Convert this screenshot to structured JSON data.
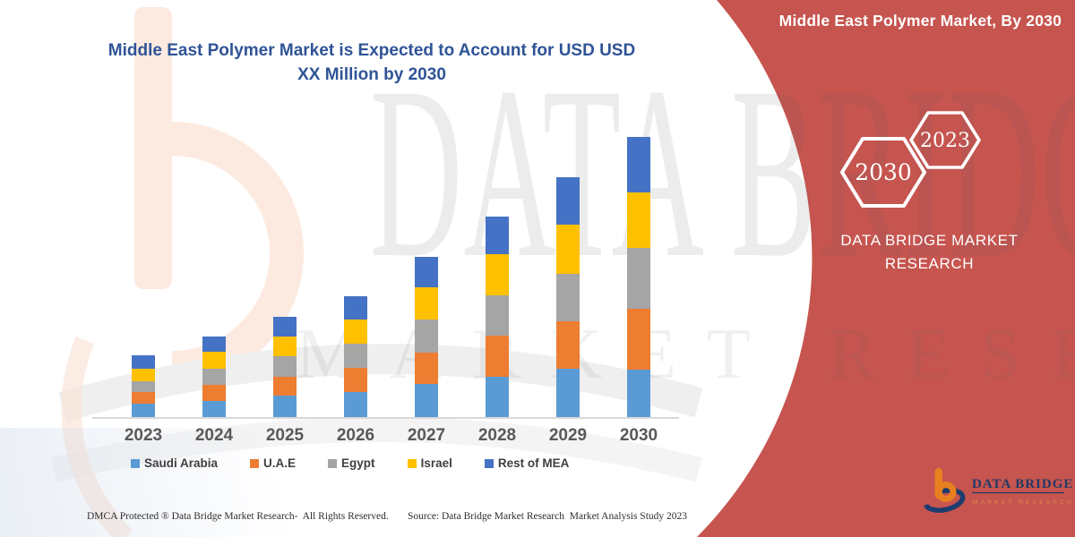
{
  "page": {
    "title_line1": "Middle East Polymer Market is Expected to Account for USD USD",
    "title_line2": "XX Million by 2030",
    "panel": {
      "header": "Middle East Polymer Market, By 2030",
      "hexagon_large_label": "2030",
      "hexagon_small_label": "2023",
      "brand_line1": "DATA BRIDGE MARKET",
      "brand_line2": "RESEARCH",
      "logo_wordmark": "DATA BRIDGE",
      "logo_subtext": "MARKET RESEARCH",
      "background_color": "#C6544F"
    },
    "watermark": {
      "line1": "DATA BRIDGE",
      "line2": "MARKET RESEARCH"
    },
    "footer": {
      "left": "DMCA Protected ® Data Bridge Market Research-  All Rights Reserved.",
      "source": "Source: Data Bridge Market Research  Market Analysis Study 2023"
    },
    "colors": {
      "title_blue": "#2F5496",
      "axis_label_gray": "#595959",
      "panel_red": "#C6544F",
      "logo_orange": "#E8801F",
      "logo_navy": "#1C3D6E"
    }
  },
  "chart_data": {
    "type": "bar",
    "stacked": true,
    "title": "Middle East Polymer Market is Expected to Account for USD USD XX Million by 2030",
    "categories": [
      "2023",
      "2024",
      "2025",
      "2026",
      "2027",
      "2028",
      "2029",
      "2030"
    ],
    "series": [
      {
        "name": "Saudi Arabia",
        "color": "#5B9BD5",
        "values": [
          15,
          18,
          24,
          28,
          37,
          45,
          54,
          53
        ]
      },
      {
        "name": "U.A.E",
        "color": "#ED7D31",
        "values": [
          13,
          18,
          21,
          27,
          35,
          46,
          53,
          68
        ]
      },
      {
        "name": "Egypt",
        "color": "#A5A5A5",
        "values": [
          12,
          18,
          23,
          27,
          37,
          45,
          53,
          68
        ]
      },
      {
        "name": "Israel",
        "color": "#FFC000",
        "values": [
          14,
          19,
          22,
          27,
          36,
          46,
          55,
          62
        ]
      },
      {
        "name": "Rest of MEA",
        "color": "#4472C4",
        "values": [
          15,
          17,
          22,
          26,
          34,
          42,
          53,
          62
        ]
      }
    ],
    "xlabel": "",
    "ylabel": "",
    "y_axis_ticks": "none shown (values undisclosed, denoted XX)",
    "grid": false,
    "legend_position": "bottom",
    "value_units": "relative estimate (pixels), actual USD Million values not labeled"
  }
}
